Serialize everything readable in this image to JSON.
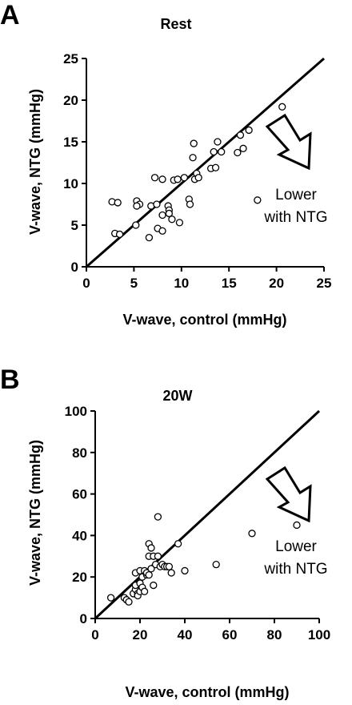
{
  "chart_data": [
    {
      "type": "scatter",
      "panel_label": "A",
      "title": "Rest",
      "xlabel": "V-wave, control (mmHg)",
      "ylabel": "V-wave, NTG (mmHg)",
      "xlim": [
        0,
        25
      ],
      "ylim": [
        0,
        25
      ],
      "xticks": [
        "0",
        "5",
        "10",
        "15",
        "20",
        "25"
      ],
      "yticks": [
        "0",
        "5",
        "10",
        "15",
        "20",
        "25"
      ],
      "identity_line": true,
      "annotation": [
        "Lower",
        "with NTG"
      ],
      "series": [
        {
          "points": [
            [
              2.7,
              7.8
            ],
            [
              3.3,
              7.7
            ],
            [
              3.0,
              4.0
            ],
            [
              3.5,
              3.9
            ],
            [
              5.2,
              5.0
            ],
            [
              5.3,
              7.9
            ],
            [
              5.6,
              7.5
            ],
            [
              5.3,
              7.3
            ],
            [
              6.6,
              3.5
            ],
            [
              6.8,
              7.3
            ],
            [
              7.2,
              10.7
            ],
            [
              7.4,
              7.5
            ],
            [
              7.5,
              4.6
            ],
            [
              8.0,
              10.5
            ],
            [
              8.0,
              6.2
            ],
            [
              8.0,
              4.3
            ],
            [
              8.6,
              7.3
            ],
            [
              8.7,
              6.8
            ],
            [
              8.7,
              6.4
            ],
            [
              9.0,
              5.7
            ],
            [
              9.2,
              10.4
            ],
            [
              9.6,
              10.5
            ],
            [
              9.8,
              5.3
            ],
            [
              10.3,
              10.7
            ],
            [
              10.8,
              8.1
            ],
            [
              10.9,
              7.5
            ],
            [
              11.2,
              13.1
            ],
            [
              11.3,
              14.8
            ],
            [
              11.4,
              10.5
            ],
            [
              11.6,
              11.2
            ],
            [
              11.8,
              10.7
            ],
            [
              13.1,
              11.8
            ],
            [
              13.4,
              13.8
            ],
            [
              13.6,
              11.9
            ],
            [
              13.8,
              15.0
            ],
            [
              14.2,
              13.8
            ],
            [
              15.9,
              13.7
            ],
            [
              16.2,
              15.8
            ],
            [
              16.5,
              14.2
            ],
            [
              17.1,
              16.4
            ],
            [
              18.0,
              8.0
            ],
            [
              20.6,
              19.2
            ]
          ]
        }
      ]
    },
    {
      "type": "scatter",
      "panel_label": "B",
      "title": "20W",
      "xlabel": "V-wave, control (mmHg)",
      "ylabel": "V-wave, NTG (mmHg)",
      "xlim": [
        0,
        100
      ],
      "ylim": [
        0,
        100
      ],
      "xticks": [
        "0",
        "20",
        "40",
        "60",
        "80",
        "100"
      ],
      "yticks": [
        "0",
        "20",
        "40",
        "60",
        "80",
        "100"
      ],
      "identity_line": true,
      "annotation": [
        "Lower",
        "with NTG"
      ],
      "series": [
        {
          "points": [
            [
              7,
              10
            ],
            [
              13,
              10
            ],
            [
              14,
              9
            ],
            [
              15,
              8
            ],
            [
              17,
              12
            ],
            [
              18,
              14
            ],
            [
              18,
              16
            ],
            [
              18,
              22
            ],
            [
              19,
              12
            ],
            [
              19,
              11
            ],
            [
              20,
              13
            ],
            [
              20,
              17
            ],
            [
              20,
              23
            ],
            [
              21,
              15
            ],
            [
              21,
              20
            ],
            [
              22,
              23
            ],
            [
              22,
              13
            ],
            [
              23,
              21
            ],
            [
              23,
              22
            ],
            [
              24,
              30
            ],
            [
              24,
              36
            ],
            [
              24,
              21
            ],
            [
              25,
              34
            ],
            [
              25,
              24
            ],
            [
              26,
              16
            ],
            [
              26,
              30
            ],
            [
              27,
              26
            ],
            [
              28,
              49
            ],
            [
              28,
              30
            ],
            [
              29,
              25
            ],
            [
              30,
              26
            ],
            [
              31,
              25
            ],
            [
              32,
              25
            ],
            [
              33,
              25
            ],
            [
              34,
              22
            ],
            [
              37,
              36
            ],
            [
              40,
              23
            ],
            [
              54,
              26
            ],
            [
              70,
              41
            ],
            [
              90,
              45
            ]
          ]
        }
      ]
    }
  ]
}
